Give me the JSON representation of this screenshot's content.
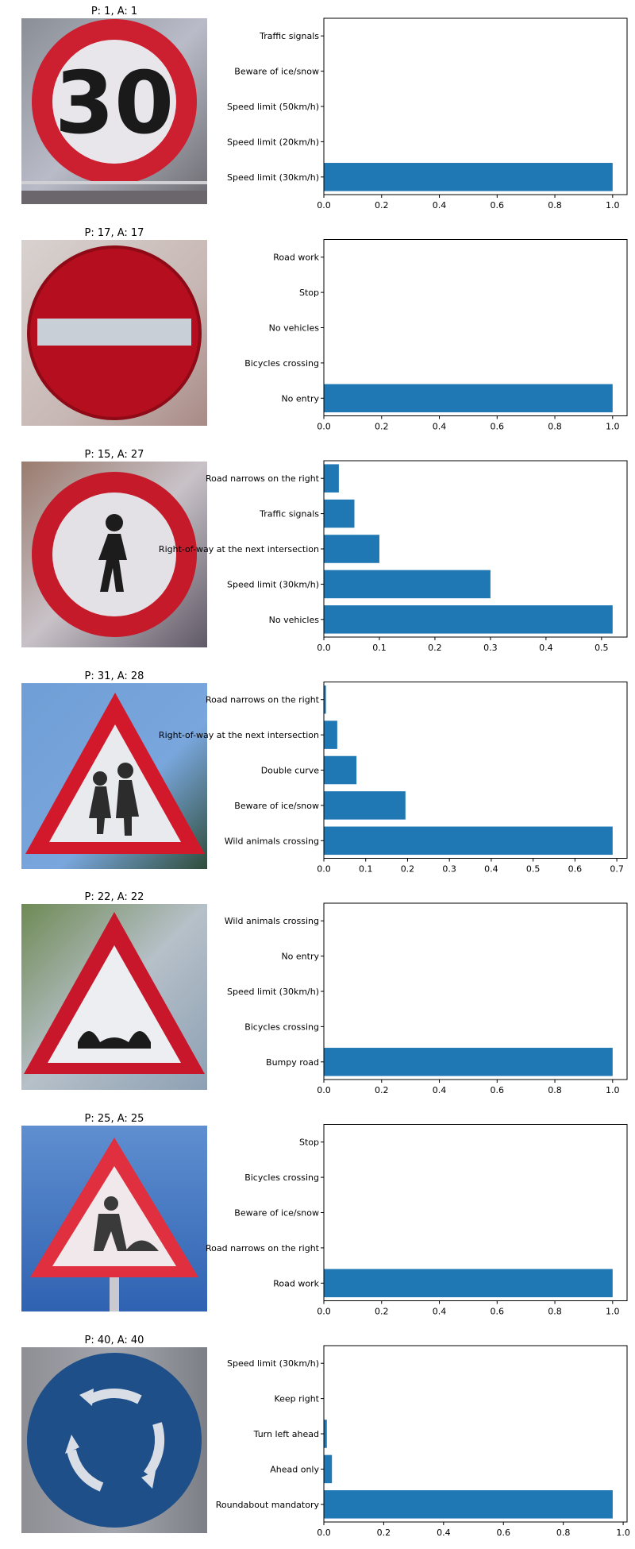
{
  "chart_data": [
    {
      "type": "bar",
      "orientation": "horizontal",
      "image_title": "P: 1, A: 1",
      "image_icon": "speed-limit-30-sign",
      "categories": [
        "Speed limit (30km/h)",
        "Speed limit (20km/h)",
        "Speed limit (50km/h)",
        "Beware of ice/snow",
        "Traffic signals"
      ],
      "values": [
        1.0,
        0.0,
        0.0,
        0.0,
        0.0
      ],
      "xlim": [
        0,
        1.05
      ],
      "xticks": [
        "0.0",
        "0.2",
        "0.4",
        "0.6",
        "0.8",
        "1.0"
      ],
      "xtick_values": [
        0,
        0.2,
        0.4,
        0.6,
        0.8,
        1.0
      ],
      "bar_color": "#1f77b4"
    },
    {
      "type": "bar",
      "orientation": "horizontal",
      "image_title": "P: 17, A: 17",
      "image_icon": "no-entry-sign",
      "categories": [
        "No entry",
        "Bicycles crossing",
        "No vehicles",
        "Stop",
        "Road work"
      ],
      "values": [
        1.0,
        0.0,
        0.0,
        0.0,
        0.0
      ],
      "xlim": [
        0,
        1.05
      ],
      "xticks": [
        "0.0",
        "0.2",
        "0.4",
        "0.6",
        "0.8",
        "1.0"
      ],
      "xtick_values": [
        0,
        0.2,
        0.4,
        0.6,
        0.8,
        1.0
      ],
      "bar_color": "#1f77b4"
    },
    {
      "type": "bar",
      "orientation": "horizontal",
      "image_title": "P: 15, A: 27",
      "image_icon": "pedestrians-sign",
      "categories": [
        "No vehicles",
        "Speed limit (30km/h)",
        "Right-of-way at the next intersection",
        "Traffic signals",
        "Road narrows on the right"
      ],
      "values": [
        0.52,
        0.3,
        0.1,
        0.055,
        0.027
      ],
      "xlim": [
        0,
        0.546
      ],
      "xticks": [
        "0.0",
        "0.1",
        "0.2",
        "0.3",
        "0.4",
        "0.5"
      ],
      "xtick_values": [
        0,
        0.1,
        0.2,
        0.3,
        0.4,
        0.5
      ],
      "bar_color": "#1f77b4"
    },
    {
      "type": "bar",
      "orientation": "horizontal",
      "image_title": "P: 31, A: 28",
      "image_icon": "children-crossing-sign",
      "categories": [
        "Wild animals crossing",
        "Beware of ice/snow",
        "Double curve",
        "Right-of-way at the next intersection",
        "Road narrows on the right"
      ],
      "values": [
        0.69,
        0.195,
        0.078,
        0.032,
        0.005
      ],
      "xlim": [
        0,
        0.7245
      ],
      "xticks": [
        "0.0",
        "0.1",
        "0.2",
        "0.3",
        "0.4",
        "0.5",
        "0.6",
        "0.7"
      ],
      "xtick_values": [
        0,
        0.1,
        0.2,
        0.3,
        0.4,
        0.5,
        0.6,
        0.7
      ],
      "bar_color": "#1f77b4"
    },
    {
      "type": "bar",
      "orientation": "horizontal",
      "image_title": "P: 22, A: 22",
      "image_icon": "bumpy-road-sign",
      "categories": [
        "Bumpy road",
        "Bicycles crossing",
        "Speed limit (30km/h)",
        "No entry",
        "Wild animals crossing"
      ],
      "values": [
        1.0,
        0.0,
        0.0,
        0.0,
        0.0
      ],
      "xlim": [
        0,
        1.05
      ],
      "xticks": [
        "0.0",
        "0.2",
        "0.4",
        "0.6",
        "0.8",
        "1.0"
      ],
      "xtick_values": [
        0,
        0.2,
        0.4,
        0.6,
        0.8,
        1.0
      ],
      "bar_color": "#1f77b4"
    },
    {
      "type": "bar",
      "orientation": "horizontal",
      "image_title": "P: 25, A: 25",
      "image_icon": "road-work-sign",
      "categories": [
        "Road work",
        "Road narrows on the right",
        "Beware of ice/snow",
        "Bicycles crossing",
        "Stop"
      ],
      "values": [
        1.0,
        0.0,
        0.0,
        0.0,
        0.0
      ],
      "xlim": [
        0,
        1.05
      ],
      "xticks": [
        "0.0",
        "0.2",
        "0.4",
        "0.6",
        "0.8",
        "1.0"
      ],
      "xtick_values": [
        0,
        0.2,
        0.4,
        0.6,
        0.8,
        1.0
      ],
      "bar_color": "#1f77b4"
    },
    {
      "type": "bar",
      "orientation": "horizontal",
      "image_title": "P: 40, A: 40",
      "image_icon": "roundabout-mandatory-sign",
      "categories": [
        "Roundabout mandatory",
        "Ahead only",
        "Turn left ahead",
        "Keep right",
        "Speed limit (30km/h)"
      ],
      "values": [
        0.965,
        0.027,
        0.01,
        0.0,
        0.0
      ],
      "xlim": [
        0,
        1.013
      ],
      "xticks": [
        "0.0",
        "0.2",
        "0.4",
        "0.6",
        "0.8",
        "1.0"
      ],
      "xtick_values": [
        0,
        0.2,
        0.4,
        0.6,
        0.8,
        1.0
      ],
      "bar_color": "#1f77b4"
    }
  ]
}
